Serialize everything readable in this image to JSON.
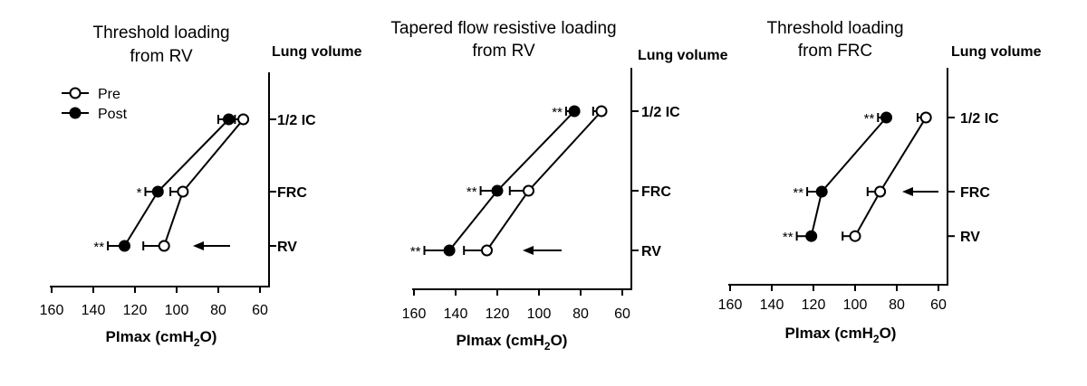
{
  "legend": {
    "pre": "Pre",
    "post": "Post"
  },
  "chart_data": [
    {
      "type": "line",
      "title": [
        "Threshold loading",
        "from RV"
      ],
      "right_label": "Lung volume",
      "xlabel": {
        "main": "PImax (cmH",
        "sub": "2",
        "end": "O)"
      },
      "xlim": [
        160,
        60
      ],
      "xticks": [
        160,
        140,
        120,
        100,
        80,
        60
      ],
      "categories": [
        "1/2 IC",
        "FRC",
        "RV"
      ],
      "category_levels": [
        0.0,
        1.0,
        1.75
      ],
      "legend_shown": true,
      "series": [
        {
          "name": "Pre",
          "marker": "open",
          "values": [
            68,
            97,
            106
          ],
          "errors": [
            4,
            6,
            10
          ]
        },
        {
          "name": "Post",
          "marker": "filled",
          "values": [
            75,
            109,
            125
          ],
          "errors": [
            5,
            6,
            8
          ]
        }
      ],
      "annotations": [
        "",
        "*",
        "**"
      ],
      "arrow_at": "RV"
    },
    {
      "type": "line",
      "title": [
        "Tapered flow resistive loading",
        "from RV"
      ],
      "right_label": "Lung volume",
      "xlabel": {
        "main": "PImax (cmH",
        "sub": "2",
        "end": "O)"
      },
      "xlim": [
        160,
        60
      ],
      "xticks": [
        160,
        140,
        120,
        100,
        80,
        60
      ],
      "categories": [
        "1/2 IC",
        "FRC",
        "RV"
      ],
      "category_levels": [
        0.0,
        1.0,
        1.75
      ],
      "legend_shown": false,
      "series": [
        {
          "name": "Pre",
          "marker": "open",
          "values": [
            70,
            105,
            125
          ],
          "errors": [
            4,
            9,
            11
          ]
        },
        {
          "name": "Post",
          "marker": "filled",
          "values": [
            83,
            120,
            143
          ],
          "errors": [
            4,
            8,
            12
          ]
        }
      ],
      "annotations": [
        "**",
        "**",
        "**"
      ],
      "arrow_at": "RV"
    },
    {
      "type": "line",
      "title": [
        "Threshold loading",
        "from FRC"
      ],
      "right_label": "Lung volume",
      "xlabel": {
        "main": "PImax (cmH",
        "sub": "2",
        "end": "O)"
      },
      "xlim": [
        160,
        60
      ],
      "xticks": [
        160,
        140,
        120,
        100,
        80,
        60
      ],
      "categories": [
        "1/2 IC",
        "FRC",
        "RV"
      ],
      "category_levels": [
        0.0,
        1.0,
        1.6
      ],
      "legend_shown": false,
      "series": [
        {
          "name": "Pre",
          "marker": "open",
          "values": [
            66,
            88,
            100
          ],
          "errors": [
            4,
            6,
            6
          ]
        },
        {
          "name": "Post",
          "marker": "filled",
          "values": [
            85,
            116,
            121
          ],
          "errors": [
            4,
            7,
            7
          ]
        }
      ],
      "annotations": [
        "**",
        "**",
        "**"
      ],
      "arrow_at": "FRC"
    }
  ]
}
